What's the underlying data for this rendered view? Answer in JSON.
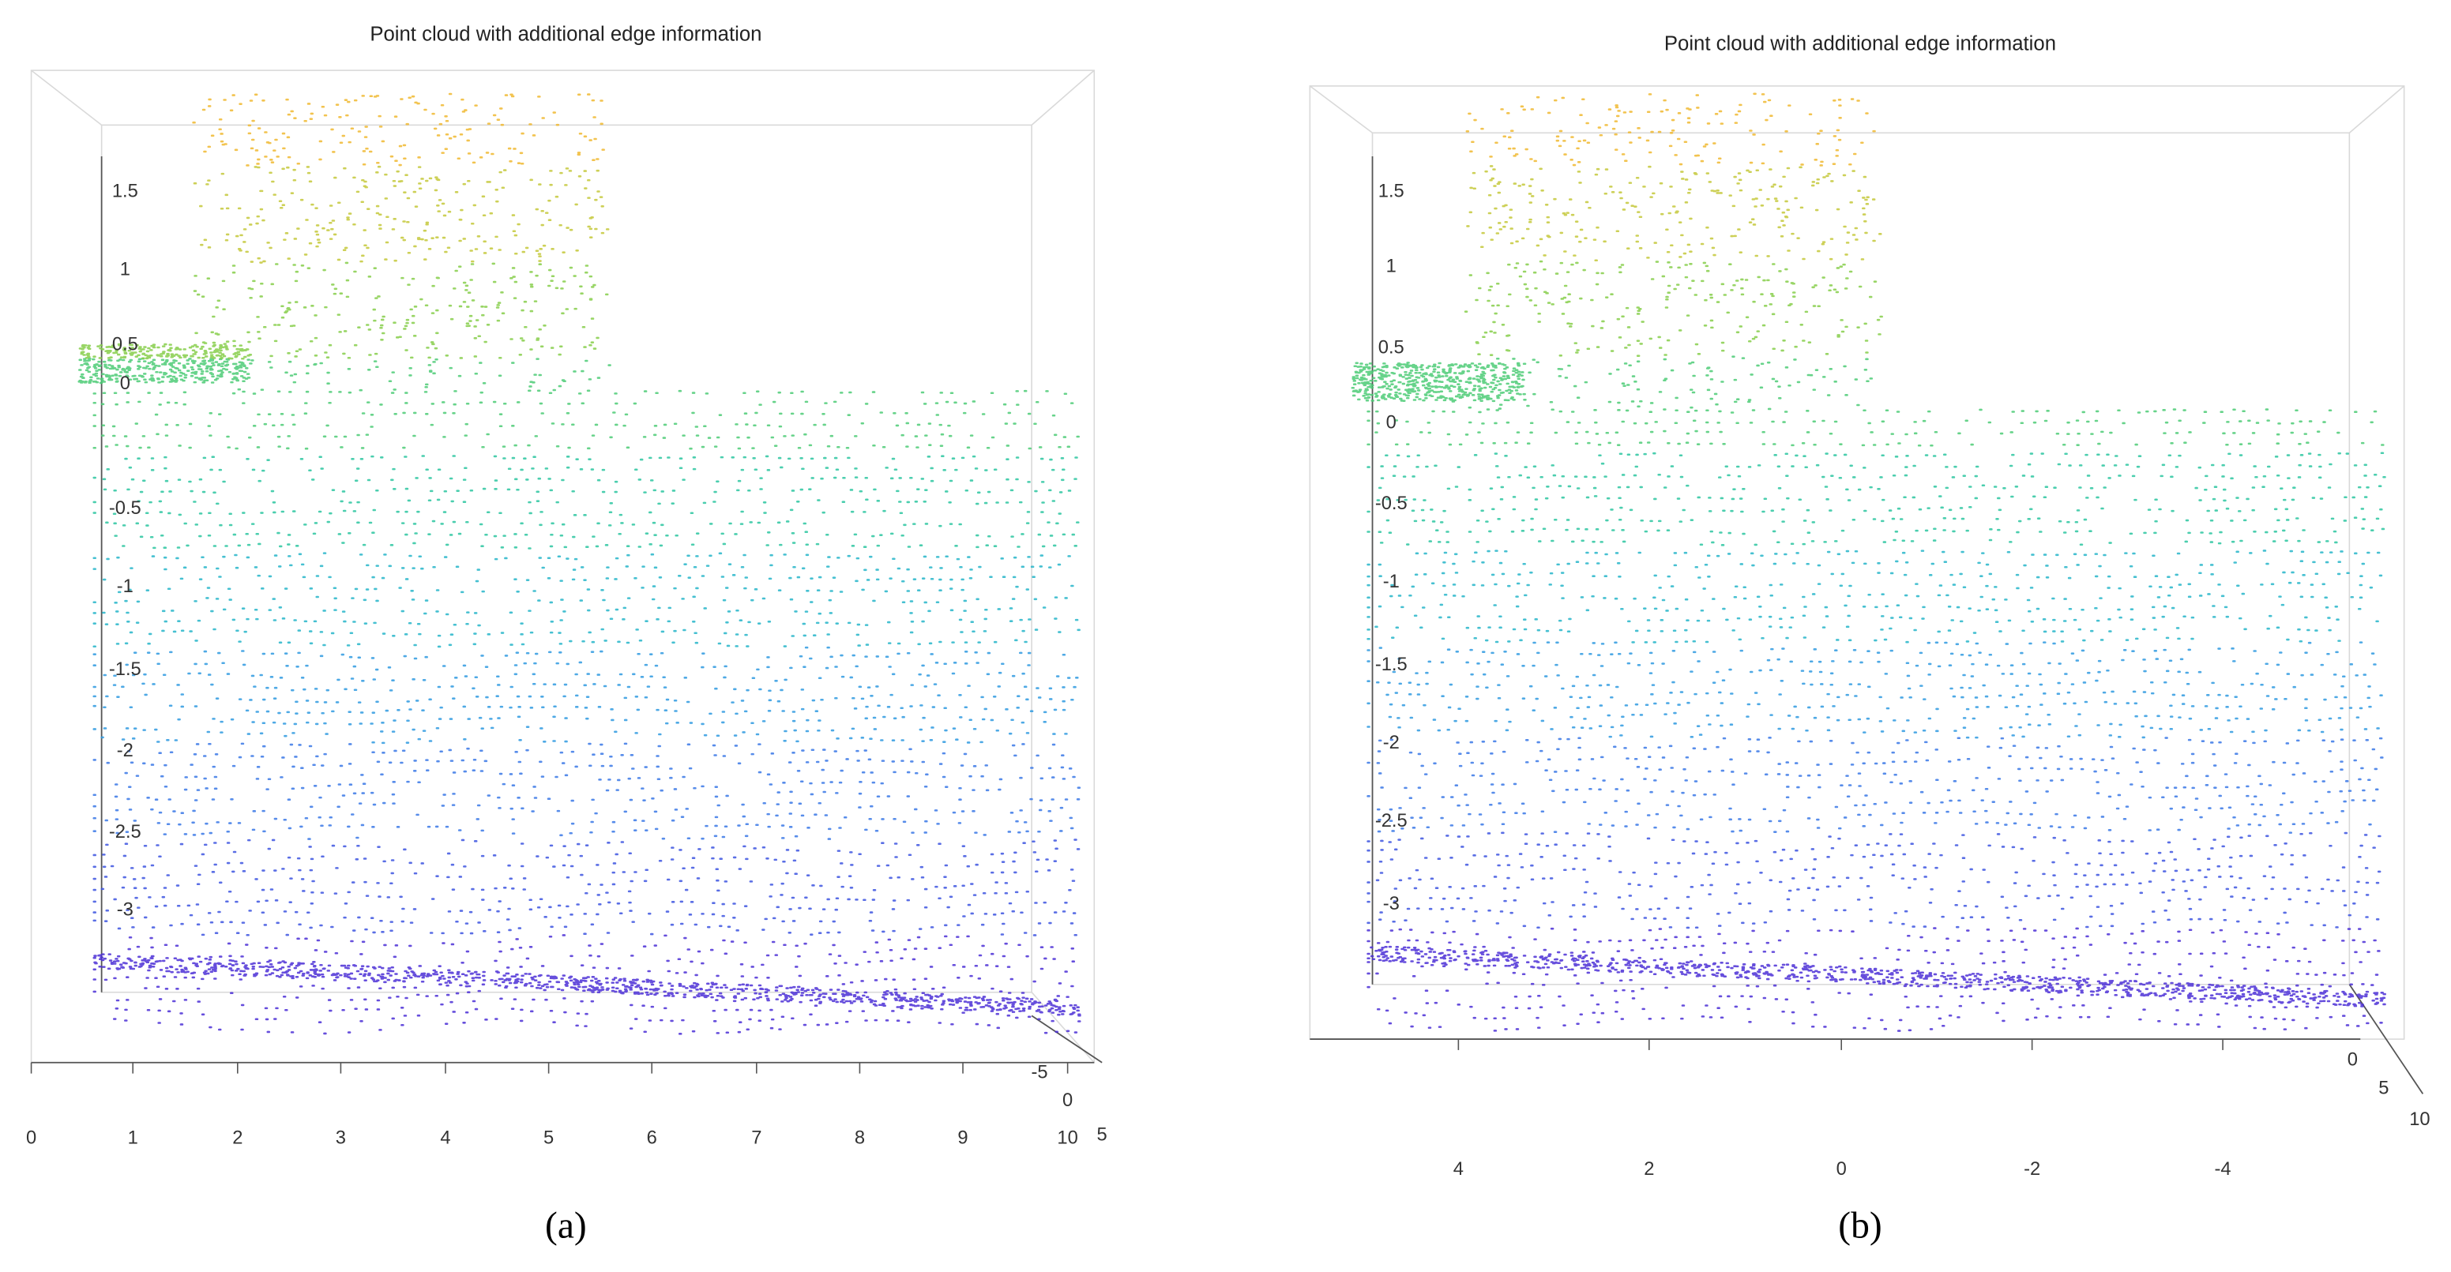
{
  "panels": [
    {
      "title": "Point cloud with additional edge information",
      "z_ticks": [
        "1.5",
        "1",
        "0.5",
        "0",
        "-0.5",
        "-1",
        "-1.5",
        "-2",
        "-2.5",
        "-3"
      ],
      "x_ticks": [
        "0",
        "1",
        "2",
        "3",
        "4",
        "5",
        "6",
        "7",
        "8",
        "9",
        "10"
      ],
      "y_ticks": [
        "-5",
        "0",
        "5"
      ],
      "caption": "(a)"
    },
    {
      "title": "Point cloud with additional edge information",
      "z_ticks": [
        "1.5",
        "1",
        "0.5",
        "0",
        "-0.5",
        "-1",
        "-1.5",
        "-2",
        "-2.5",
        "-3"
      ],
      "x_ticks": [
        "4",
        "2",
        "0",
        "-2",
        "-4"
      ],
      "y_ticks": [
        "0",
        "5",
        "10"
      ],
      "caption": "(b)"
    }
  ]
}
